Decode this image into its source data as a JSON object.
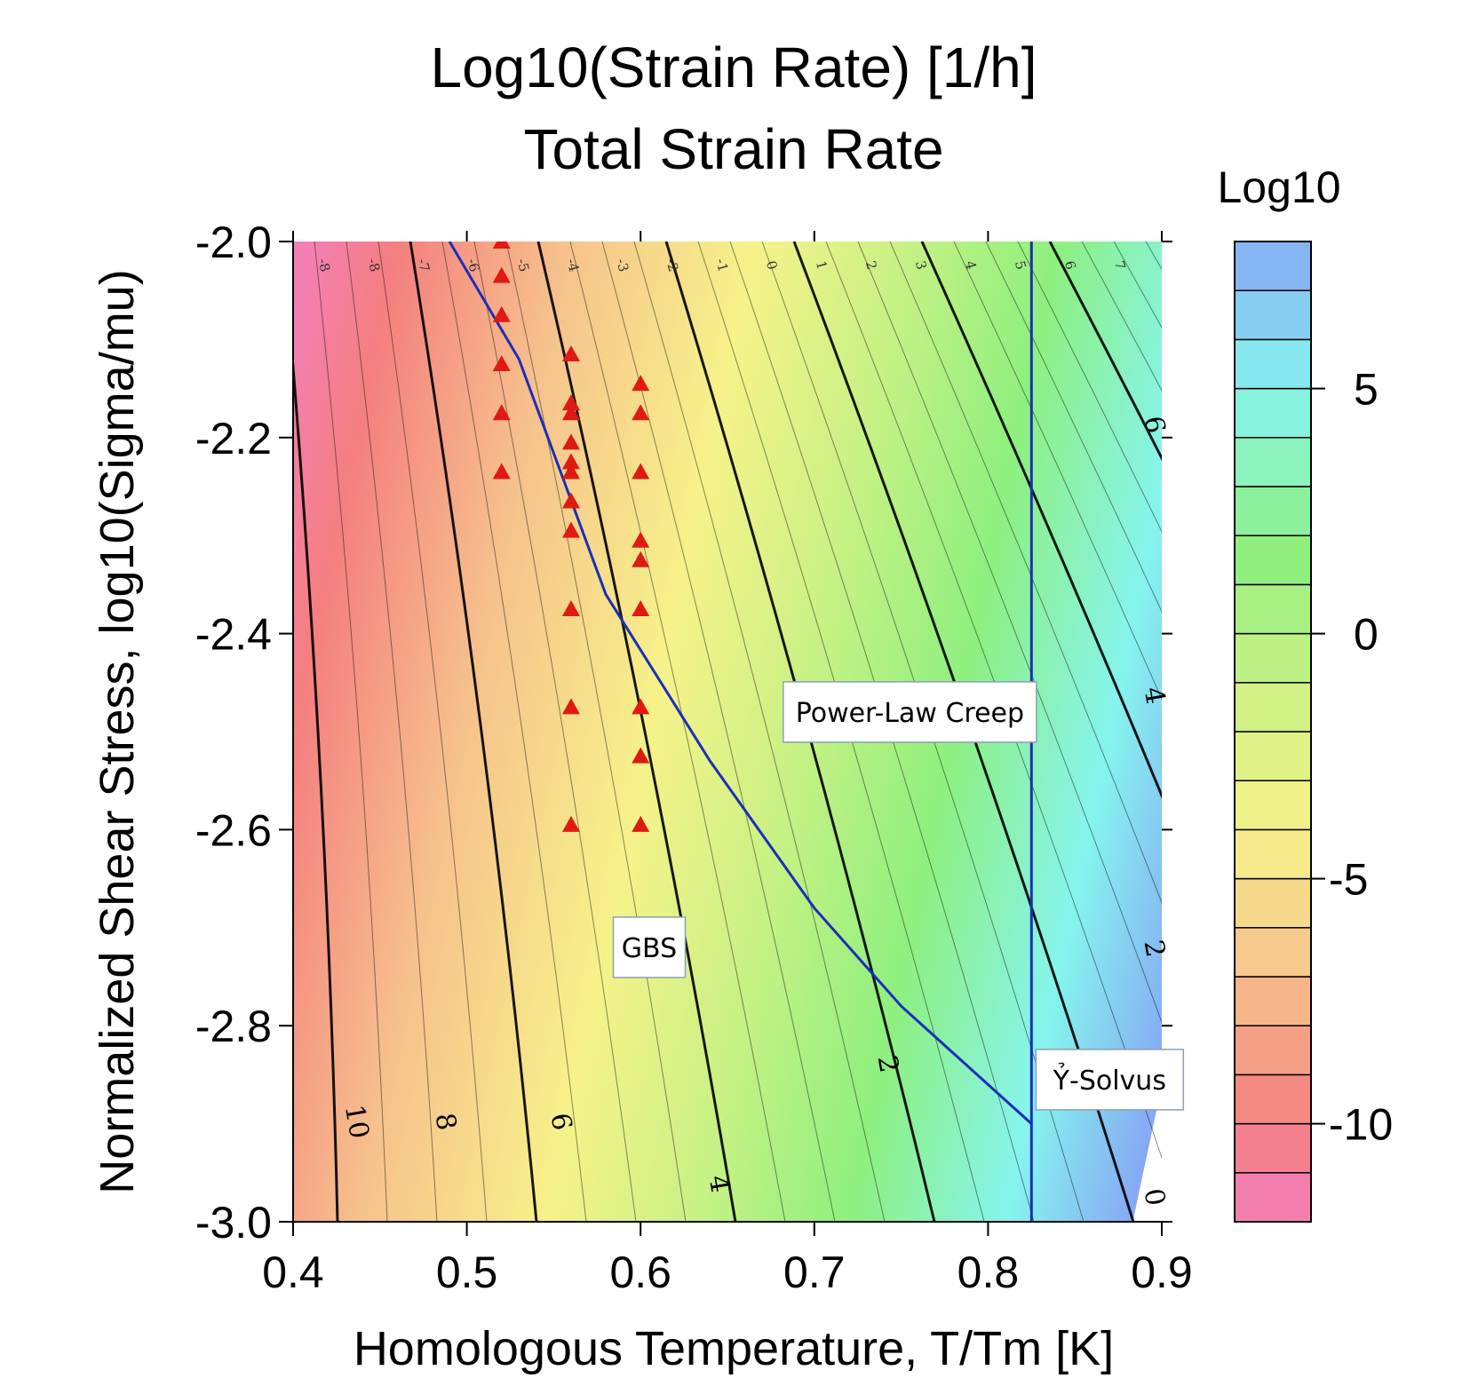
{
  "chart_data": {
    "type": "heatmap",
    "title": "Log10(Strain Rate) [1/h]",
    "subtitle": "Total Strain Rate",
    "xlabel": "Homologous Temperature, T/Tm [K]",
    "ylabel": "Normalized Shear Stress, log10(Sigma/mu)",
    "xlim": [
      0.4,
      0.9
    ],
    "ylim": [
      -3.0,
      -2.0
    ],
    "x_ticks": [
      "0.4",
      "0.5",
      "0.6",
      "0.7",
      "0.8",
      "0.9"
    ],
    "y_ticks": [
      "-3.0",
      "-2.8",
      "-2.6",
      "-2.4",
      "-2.2",
      "-2.0"
    ],
    "colorbar": {
      "title": "Log10",
      "range": [
        -12,
        8
      ],
      "ticks": [
        "5",
        "0",
        "-5",
        "-10"
      ],
      "band_step": 1
    },
    "contour_labels_major": [
      "10",
      "8",
      "6",
      "4",
      "2",
      "0",
      "2",
      "4",
      "6"
    ],
    "contour_labels_top": [
      "-8",
      "-8",
      "-7",
      "-6",
      "-5",
      "-4",
      "-3",
      "-2",
      "-1",
      "0",
      "1",
      "2",
      "3",
      "4",
      "5",
      "6",
      "7"
    ],
    "data_points": [
      {
        "x": 0.52,
        "y": -2.0
      },
      {
        "x": 0.52,
        "y": -2.035
      },
      {
        "x": 0.52,
        "y": -2.075
      },
      {
        "x": 0.52,
        "y": -2.125
      },
      {
        "x": 0.52,
        "y": -2.175
      },
      {
        "x": 0.52,
        "y": -2.235
      },
      {
        "x": 0.56,
        "y": -2.115
      },
      {
        "x": 0.56,
        "y": -2.165
      },
      {
        "x": 0.56,
        "y": -2.175
      },
      {
        "x": 0.56,
        "y": -2.205
      },
      {
        "x": 0.56,
        "y": -2.225
      },
      {
        "x": 0.56,
        "y": -2.235
      },
      {
        "x": 0.56,
        "y": -2.265
      },
      {
        "x": 0.56,
        "y": -2.295
      },
      {
        "x": 0.56,
        "y": -2.375
      },
      {
        "x": 0.56,
        "y": -2.475
      },
      {
        "x": 0.56,
        "y": -2.595
      },
      {
        "x": 0.6,
        "y": -2.145
      },
      {
        "x": 0.6,
        "y": -2.175
      },
      {
        "x": 0.6,
        "y": -2.235
      },
      {
        "x": 0.6,
        "y": -2.305
      },
      {
        "x": 0.6,
        "y": -2.325
      },
      {
        "x": 0.6,
        "y": -2.375
      },
      {
        "x": 0.6,
        "y": -2.475
      },
      {
        "x": 0.6,
        "y": -2.525
      },
      {
        "x": 0.6,
        "y": -2.595
      }
    ],
    "boundary_lines": [
      {
        "name": "GBS / Power-Law boundary",
        "points": [
          [
            0.49,
            -2.0
          ],
          [
            0.53,
            -2.12
          ],
          [
            0.58,
            -2.36
          ],
          [
            0.64,
            -2.53
          ],
          [
            0.7,
            -2.68
          ],
          [
            0.75,
            -2.78
          ],
          [
            0.825,
            -2.9
          ]
        ]
      },
      {
        "name": "Solvus",
        "points": [
          [
            0.825,
            -2.0
          ],
          [
            0.825,
            -3.0
          ]
        ]
      }
    ],
    "annotations": [
      {
        "text": "Power-Law Creep",
        "x": 0.755,
        "y": -2.48
      },
      {
        "text": "GBS",
        "x": 0.605,
        "y": -2.72
      },
      {
        "text": "Ỷ-Solvus",
        "x": 0.87,
        "y": -2.855
      }
    ],
    "field_colors": {
      "pink": "#f47fbe",
      "red": "#f47f7f",
      "orange": "#f6c18c",
      "yellow": "#f6f28a",
      "green": "#8ef07f",
      "cyan": "#86f4ee",
      "blue": "#86a8f4"
    }
  }
}
